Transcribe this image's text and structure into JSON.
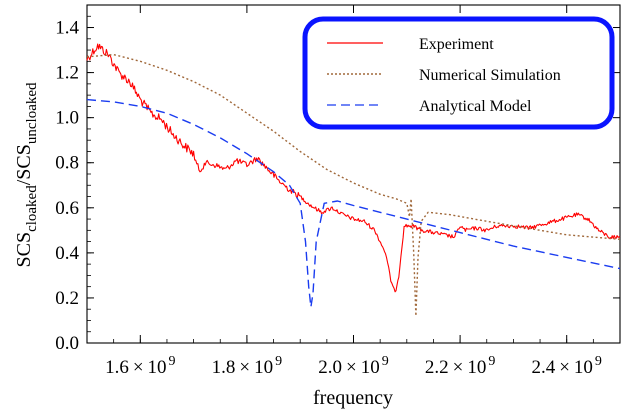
{
  "chart_data": {
    "type": "line",
    "xlabel": "frequency",
    "ylabel": "SCS",
    "ylabel_sub1": "cloaked",
    "ylabel_mid": "/SCS",
    "ylabel_sub2": "uncloaked",
    "xlim": [
      1500000000,
      2500000000
    ],
    "ylim": [
      0.0,
      1.5
    ],
    "x_ticks": [
      {
        "value": 1600000000,
        "mantissa": "1.6",
        "times": "×",
        "base": "10",
        "exp": "9"
      },
      {
        "value": 1800000000,
        "mantissa": "1.8",
        "times": "×",
        "base": "10",
        "exp": "9"
      },
      {
        "value": 2000000000,
        "mantissa": "2.0",
        "times": "×",
        "base": "10",
        "exp": "9"
      },
      {
        "value": 2200000000,
        "mantissa": "2.2",
        "times": "×",
        "base": "10",
        "exp": "9"
      },
      {
        "value": 2400000000,
        "mantissa": "2.4",
        "times": "×",
        "base": "10",
        "exp": "9"
      }
    ],
    "y_ticks": [
      {
        "value": 0.0,
        "label": "0.0"
      },
      {
        "value": 0.2,
        "label": "0.2"
      },
      {
        "value": 0.4,
        "label": "0.4"
      },
      {
        "value": 0.6,
        "label": "0.6"
      },
      {
        "value": 0.8,
        "label": "0.8"
      },
      {
        "value": 1.0,
        "label": "1.0"
      },
      {
        "value": 1.2,
        "label": "1.2"
      },
      {
        "value": 1.4,
        "label": "1.4"
      }
    ],
    "grid": false,
    "legend_position": "top-right",
    "series": [
      {
        "name": "Experiment",
        "color": "#ff0000",
        "style": "solid",
        "noisy": true,
        "points": [
          [
            1500000000,
            1.26
          ],
          [
            1520000000,
            1.32
          ],
          [
            1540000000,
            1.28
          ],
          [
            1560000000,
            1.2
          ],
          [
            1580000000,
            1.16
          ],
          [
            1600000000,
            1.08
          ],
          [
            1620000000,
            1.02
          ],
          [
            1640000000,
            0.99
          ],
          [
            1660000000,
            0.93
          ],
          [
            1680000000,
            0.88
          ],
          [
            1700000000,
            0.84
          ],
          [
            1710000000,
            0.76
          ],
          [
            1720000000,
            0.8
          ],
          [
            1740000000,
            0.79
          ],
          [
            1760000000,
            0.77
          ],
          [
            1780000000,
            0.81
          ],
          [
            1800000000,
            0.79
          ],
          [
            1820000000,
            0.82
          ],
          [
            1840000000,
            0.77
          ],
          [
            1860000000,
            0.72
          ],
          [
            1880000000,
            0.68
          ],
          [
            1900000000,
            0.65
          ],
          [
            1920000000,
            0.61
          ],
          [
            1940000000,
            0.58
          ],
          [
            1960000000,
            0.6
          ],
          [
            1980000000,
            0.57
          ],
          [
            2000000000,
            0.55
          ],
          [
            2020000000,
            0.54
          ],
          [
            2040000000,
            0.5
          ],
          [
            2060000000,
            0.4
          ],
          [
            2070000000,
            0.28
          ],
          [
            2078000000,
            0.22
          ],
          [
            2085000000,
            0.3
          ],
          [
            2095000000,
            0.52
          ],
          [
            2110000000,
            0.52
          ],
          [
            2130000000,
            0.5
          ],
          [
            2150000000,
            0.49
          ],
          [
            2170000000,
            0.48
          ],
          [
            2190000000,
            0.47
          ],
          [
            2200000000,
            0.52
          ],
          [
            2210000000,
            0.5
          ],
          [
            2230000000,
            0.51
          ],
          [
            2250000000,
            0.5
          ],
          [
            2270000000,
            0.52
          ],
          [
            2300000000,
            0.52
          ],
          [
            2330000000,
            0.51
          ],
          [
            2360000000,
            0.53
          ],
          [
            2390000000,
            0.55
          ],
          [
            2420000000,
            0.57
          ],
          [
            2440000000,
            0.55
          ],
          [
            2460000000,
            0.5
          ],
          [
            2480000000,
            0.47
          ],
          [
            2500000000,
            0.47
          ]
        ]
      },
      {
        "name": "Numerical Simulation",
        "color": "#a0683a",
        "style": "dotted",
        "noisy": false,
        "points": [
          [
            1500000000,
            1.27
          ],
          [
            1550000000,
            1.28
          ],
          [
            1600000000,
            1.25
          ],
          [
            1650000000,
            1.21
          ],
          [
            1700000000,
            1.16
          ],
          [
            1750000000,
            1.1
          ],
          [
            1800000000,
            1.02
          ],
          [
            1850000000,
            0.94
          ],
          [
            1900000000,
            0.85
          ],
          [
            1950000000,
            0.77
          ],
          [
            2000000000,
            0.71
          ],
          [
            2050000000,
            0.66
          ],
          [
            2080000000,
            0.64
          ],
          [
            2100000000,
            0.62
          ],
          [
            2105000000,
            0.56
          ],
          [
            2108000000,
            0.64
          ],
          [
            2113000000,
            0.4
          ],
          [
            2117000000,
            0.12
          ],
          [
            2121000000,
            0.38
          ],
          [
            2127000000,
            0.54
          ],
          [
            2140000000,
            0.58
          ],
          [
            2180000000,
            0.57
          ],
          [
            2250000000,
            0.54
          ],
          [
            2300000000,
            0.52
          ],
          [
            2350000000,
            0.5
          ],
          [
            2400000000,
            0.48
          ],
          [
            2450000000,
            0.47
          ],
          [
            2500000000,
            0.46
          ]
        ]
      },
      {
        "name": "Analytical Model",
        "color": "#1a3cf0",
        "style": "dashed",
        "noisy": false,
        "points": [
          [
            1500000000,
            1.08
          ],
          [
            1550000000,
            1.07
          ],
          [
            1600000000,
            1.05
          ],
          [
            1650000000,
            1.02
          ],
          [
            1700000000,
            0.97
          ],
          [
            1750000000,
            0.91
          ],
          [
            1800000000,
            0.84
          ],
          [
            1850000000,
            0.76
          ],
          [
            1880000000,
            0.7
          ],
          [
            1900000000,
            0.62
          ],
          [
            1910000000,
            0.45
          ],
          [
            1916000000,
            0.25
          ],
          [
            1920000000,
            0.16
          ],
          [
            1924000000,
            0.22
          ],
          [
            1930000000,
            0.45
          ],
          [
            1945000000,
            0.62
          ],
          [
            1970000000,
            0.63
          ],
          [
            2000000000,
            0.61
          ],
          [
            2100000000,
            0.55
          ],
          [
            2200000000,
            0.49
          ],
          [
            2300000000,
            0.43
          ],
          [
            2400000000,
            0.38
          ],
          [
            2500000000,
            0.33
          ]
        ]
      }
    ]
  }
}
